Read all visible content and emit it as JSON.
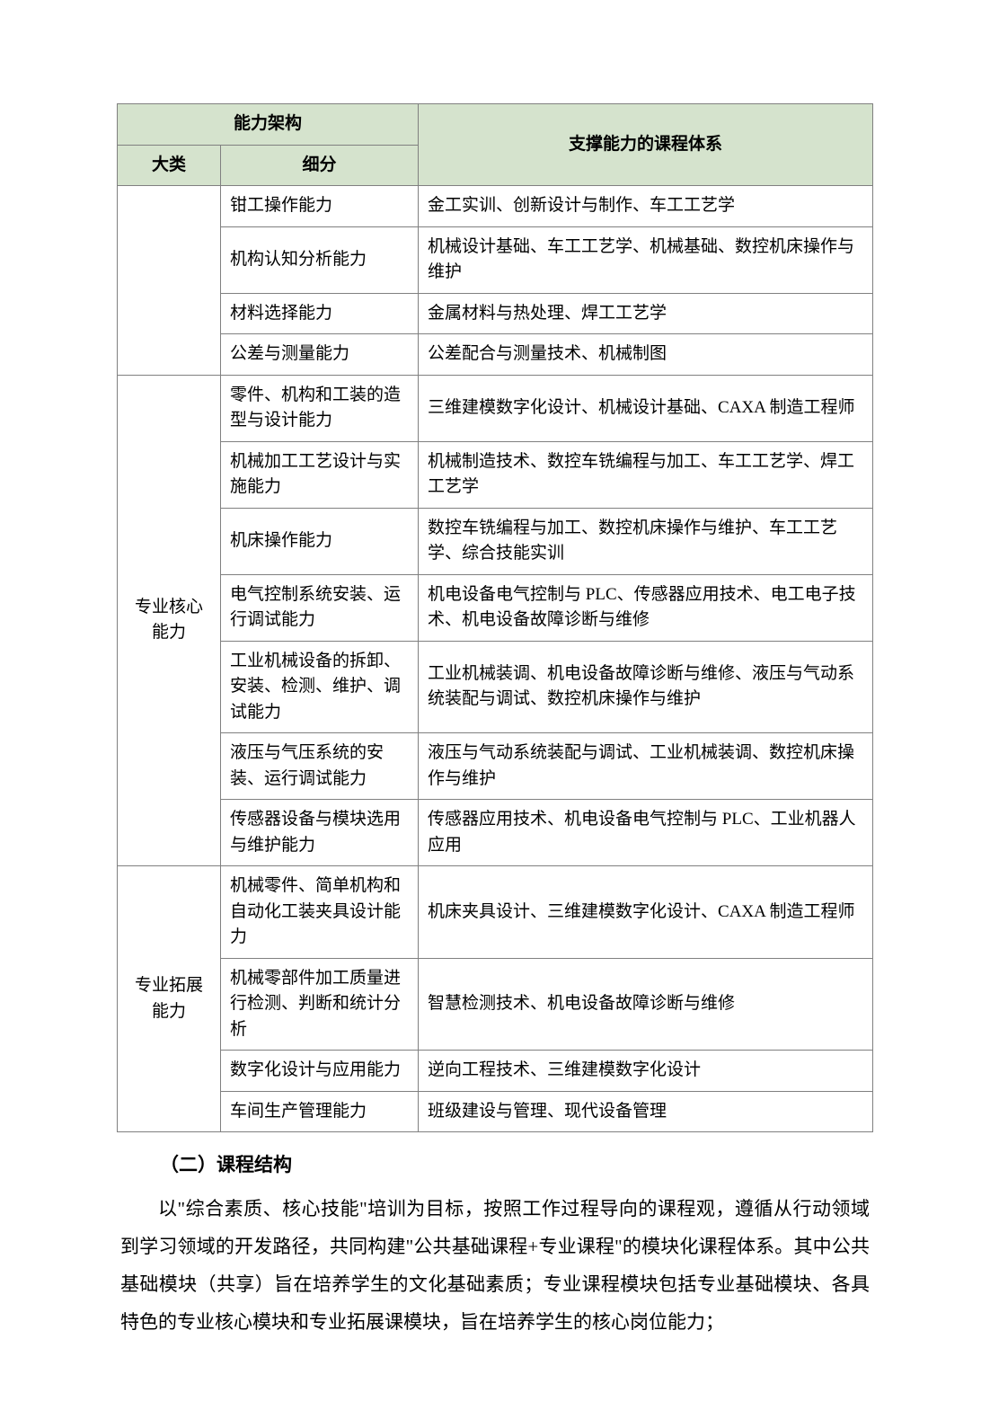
{
  "colors": {
    "header_bg": "#d5e3cd",
    "border": "#808080",
    "text": "#000000",
    "page_bg": "#ffffff"
  },
  "header": {
    "ability_structure": "能力架构",
    "main_category": "大类",
    "sub_category": "细分",
    "course_system": "支撑能力的课程体系"
  },
  "categories": [
    {
      "name": "",
      "rows": [
        {
          "sub": "钳工操作能力",
          "courses": "金工实训、创新设计与制作、车工工艺学"
        },
        {
          "sub": "机构认知分析能力",
          "courses": "机械设计基础、车工工艺学、机械基础、数控机床操作与维护"
        },
        {
          "sub": "材料选择能力",
          "courses": "金属材料与热处理、焊工工艺学"
        },
        {
          "sub": "公差与测量能力",
          "courses": "公差配合与测量技术、机械制图"
        }
      ]
    },
    {
      "name": "专业核心能力",
      "rows": [
        {
          "sub": "零件、机构和工装的造型与设计能力",
          "courses": "三维建模数字化设计、机械设计基础、CAXA 制造工程师"
        },
        {
          "sub": "机械加工工艺设计与实施能力",
          "courses": "机械制造技术、数控车铣编程与加工、车工工艺学、焊工工艺学"
        },
        {
          "sub": "机床操作能力",
          "courses": "数控车铣编程与加工、数控机床操作与维护、车工工艺学、综合技能实训"
        },
        {
          "sub": "电气控制系统安装、运行调试能力",
          "courses": "机电设备电气控制与 PLC、传感器应用技术、电工电子技术、机电设备故障诊断与维修"
        },
        {
          "sub": "工业机械设备的拆卸、安装、检测、维护、调试能力",
          "courses": "工业机械装调、机电设备故障诊断与维修、液压与气动系统装配与调试、数控机床操作与维护"
        },
        {
          "sub": "液压与气压系统的安装、运行调试能力",
          "courses": "液压与气动系统装配与调试、工业机械装调、数控机床操作与维护"
        },
        {
          "sub": "传感器设备与模块选用与维护能力",
          "courses": "传感器应用技术、机电设备电气控制与 PLC、工业机器人应用"
        }
      ]
    },
    {
      "name": "专业拓展能力",
      "rows": [
        {
          "sub": "机械零件、简单机构和自动化工装夹具设计能力",
          "courses": "机床夹具设计、三维建模数字化设计、CAXA 制造工程师"
        },
        {
          "sub": "机械零部件加工质量进行检测、判断和统计分析",
          "courses": "智慧检测技术、机电设备故障诊断与维修"
        },
        {
          "sub": "数字化设计与应用能力",
          "courses": "逆向工程技术、三维建模数字化设计"
        },
        {
          "sub": "车间生产管理能力",
          "courses": "班级建设与管理、现代设备管理"
        }
      ]
    }
  ],
  "section_title": "（二）课程结构",
  "paragraph": "以\"综合素质、核心技能\"培训为目标，按照工作过程导向的课程观，遵循从行动领域到学习领域的开发路径，共同构建\"公共基础课程+专业课程\"的模块化课程体系。其中公共基础模块（共享）旨在培养学生的文化基础素质；专业课程模块包括专业基础模块、各具特色的专业核心模块和专业拓展课模块，旨在培养学生的核心岗位能力；"
}
